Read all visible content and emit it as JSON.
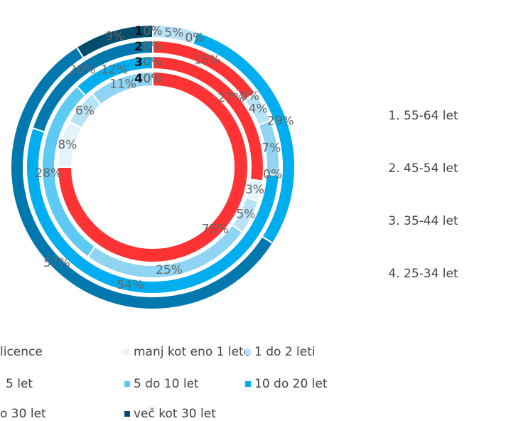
{
  "chart_data": {
    "type": "donut",
    "categories": [
      "licence",
      "manj kot eno 1 leto",
      "1 do 2 leti",
      "5 let",
      "5 do 10 let",
      "10 do 20 let",
      "o 30 let",
      "več kot 30 let"
    ],
    "colors": [
      "#ff3333",
      "#e3f4fb",
      "#b8e3f6",
      "#8fd4f3",
      "#5ccaf3",
      "#00aeef",
      "#0078ae",
      "#004d6e"
    ],
    "series": [
      {
        "name": "55-64 let",
        "label": "1",
        "values": [
          0,
          0,
          5,
          0,
          0,
          29,
          57,
          9
        ],
        "value_labels": [
          "0%",
          "0%",
          "5%",
          "0%",
          "0%",
          "29%",
          "57%",
          "9%"
        ]
      },
      {
        "name": "45-54 let",
        "label": "2",
        "values": [
          15,
          0,
          4,
          7,
          0,
          54,
          20,
          0
        ],
        "value_labels": [
          "15%",
          "0%",
          "4%",
          "7%",
          "0%",
          "54%",
          "20%",
          "0%"
        ]
      },
      {
        "name": "35-44 let",
        "label": "3",
        "values": [
          27,
          3,
          5,
          25,
          28,
          12,
          0,
          0
        ],
        "value_labels": [
          "27%",
          "3%",
          "5%",
          "25%",
          "28%",
          "12%",
          "0%",
          "0%"
        ]
      },
      {
        "name": "25-34 let",
        "label": "4",
        "values": [
          75,
          8,
          6,
          11,
          0,
          0,
          0,
          0
        ],
        "value_labels": [
          "75%",
          "8%",
          "6%",
          "11%",
          "0%",
          "0%",
          "0%",
          "0%"
        ]
      }
    ]
  }
}
